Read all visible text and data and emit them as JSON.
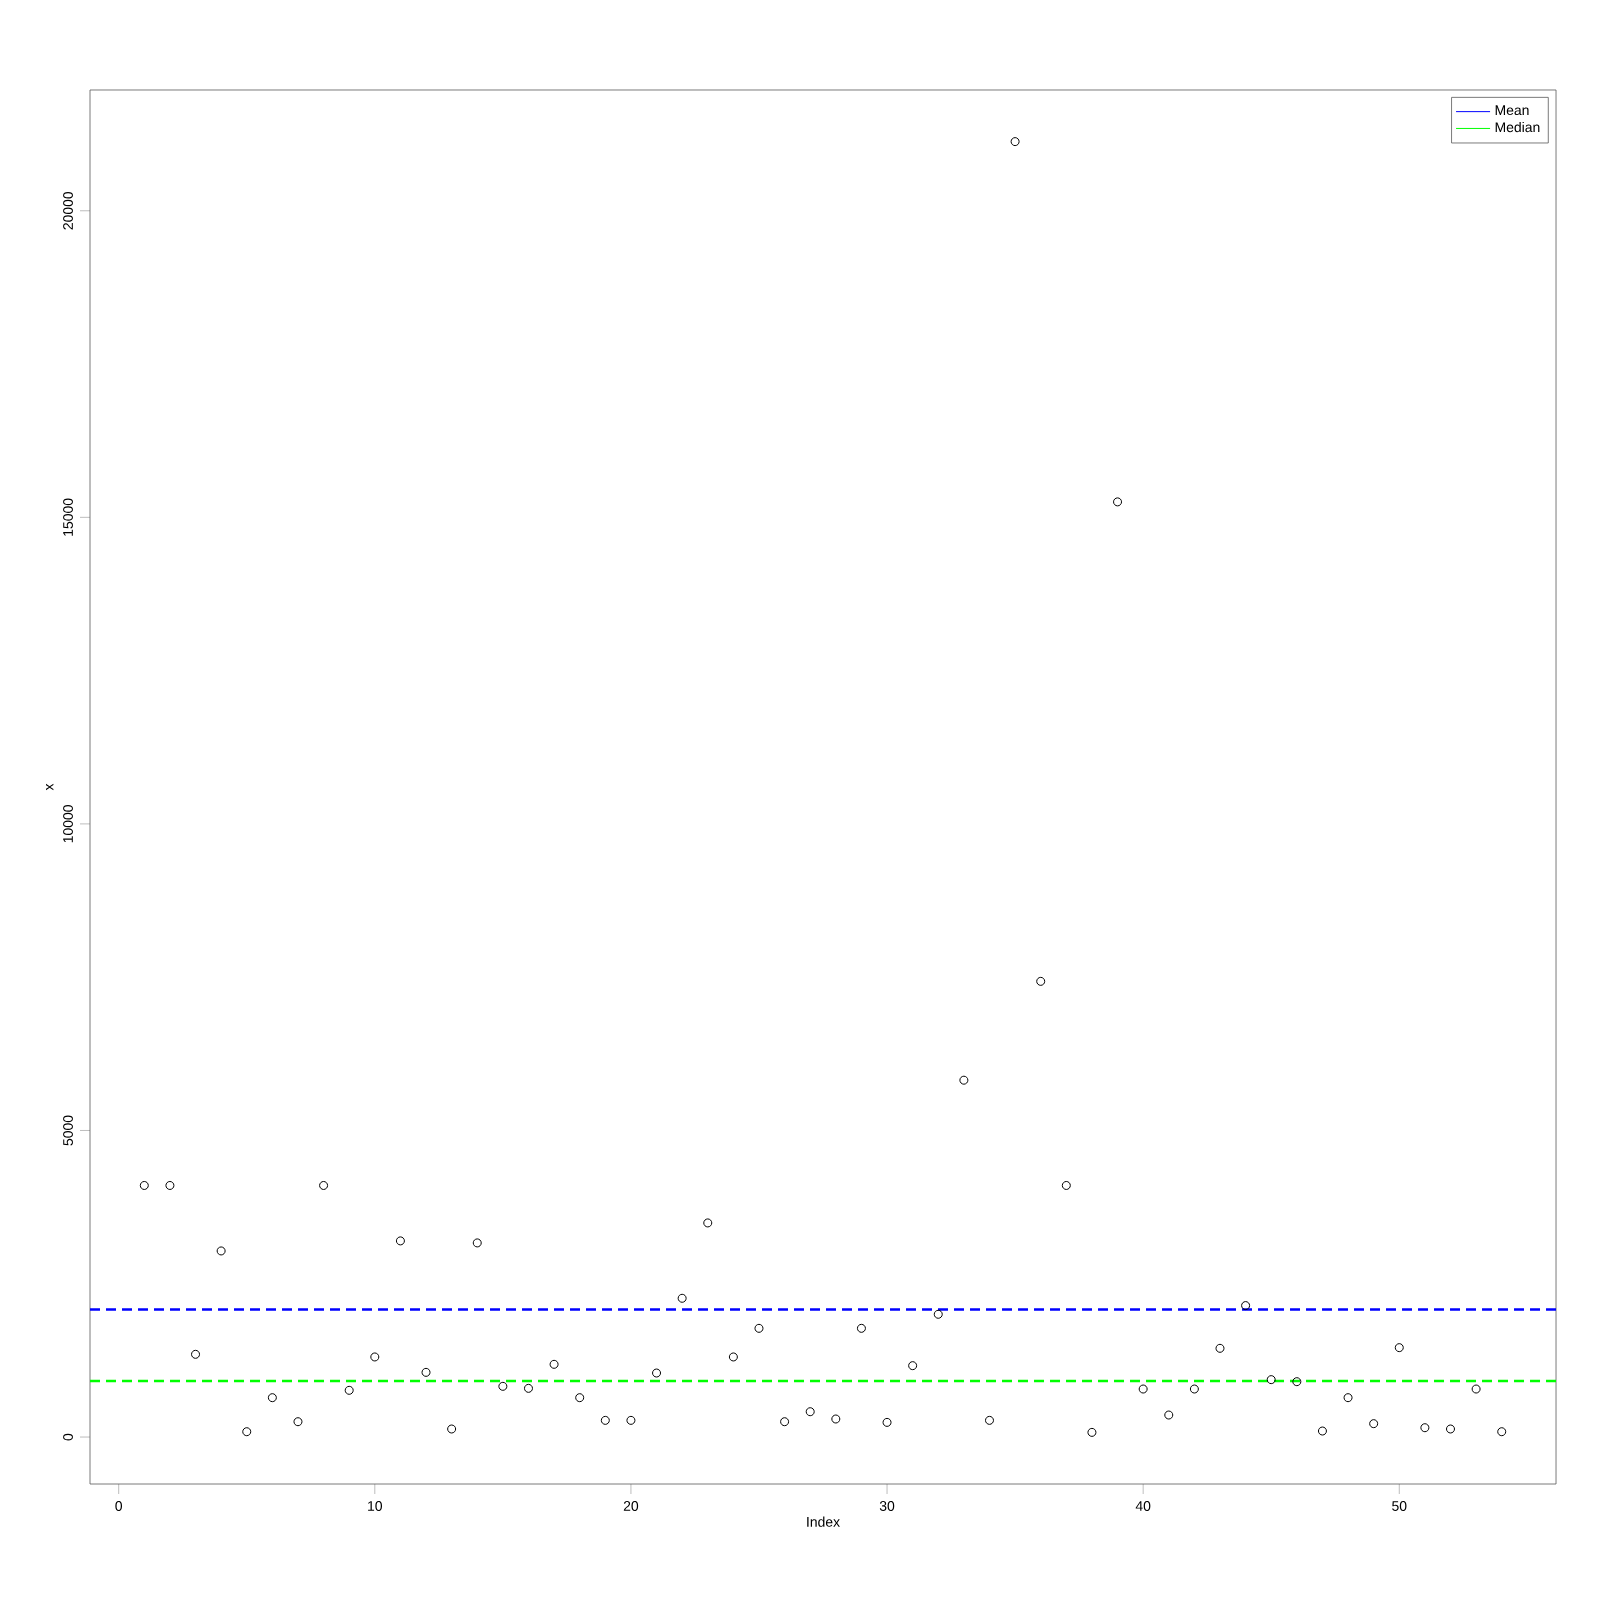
{
  "chart_data": {
    "type": "scatter",
    "xlabel": "Index",
    "ylabel": "x",
    "x": [
      1,
      2,
      3,
      4,
      5,
      6,
      7,
      8,
      9,
      10,
      11,
      12,
      13,
      14,
      15,
      16,
      17,
      18,
      19,
      20,
      21,
      22,
      23,
      24,
      25,
      26,
      27,
      28,
      29,
      30,
      31,
      32,
      33,
      34,
      35,
      36,
      37,
      38,
      39,
      40,
      41,
      42,
      43,
      44,
      45,
      46,
      47,
      48,
      49,
      50,
      51,
      52,
      53,
      54
    ],
    "series": [
      {
        "color": "#000000",
        "values": [
          4103,
          4103,
          1349,
          3035,
          87,
          642,
          250,
          4103,
          762,
          1306,
          3199,
          1055,
          131,
          3166,
          827,
          794,
          1186,
          642,
          272,
          272,
          1044,
          2263,
          3492,
          1306,
          1773,
          250,
          413,
          294,
          1773,
          239,
          1164,
          2002,
          5820,
          272,
          21128,
          7432,
          4103,
          76,
          15252,
          783,
          359,
          783,
          1447,
          2144,
          936,
          903,
          98,
          642,
          218,
          1458,
          152,
          131,
          783,
          87
        ]
      }
    ],
    "xlim": [
      -1.12,
      56.12
    ],
    "ylim": [
      -766,
      21970
    ],
    "xticks": [
      0,
      10,
      20,
      30,
      40,
      50
    ],
    "yticks": [
      0,
      5000,
      10000,
      15000,
      20000
    ],
    "marker": "circle",
    "grid": false,
    "legend": "top right",
    "ref_lines": [
      {
        "axis": "y",
        "value": 2079,
        "label": "Mean",
        "color": "#0000ff",
        "line_style": "dashed"
      },
      {
        "axis": "y",
        "value": 914,
        "label": "Median",
        "color": "#00ff00",
        "line_style": "dashed"
      }
    ]
  }
}
